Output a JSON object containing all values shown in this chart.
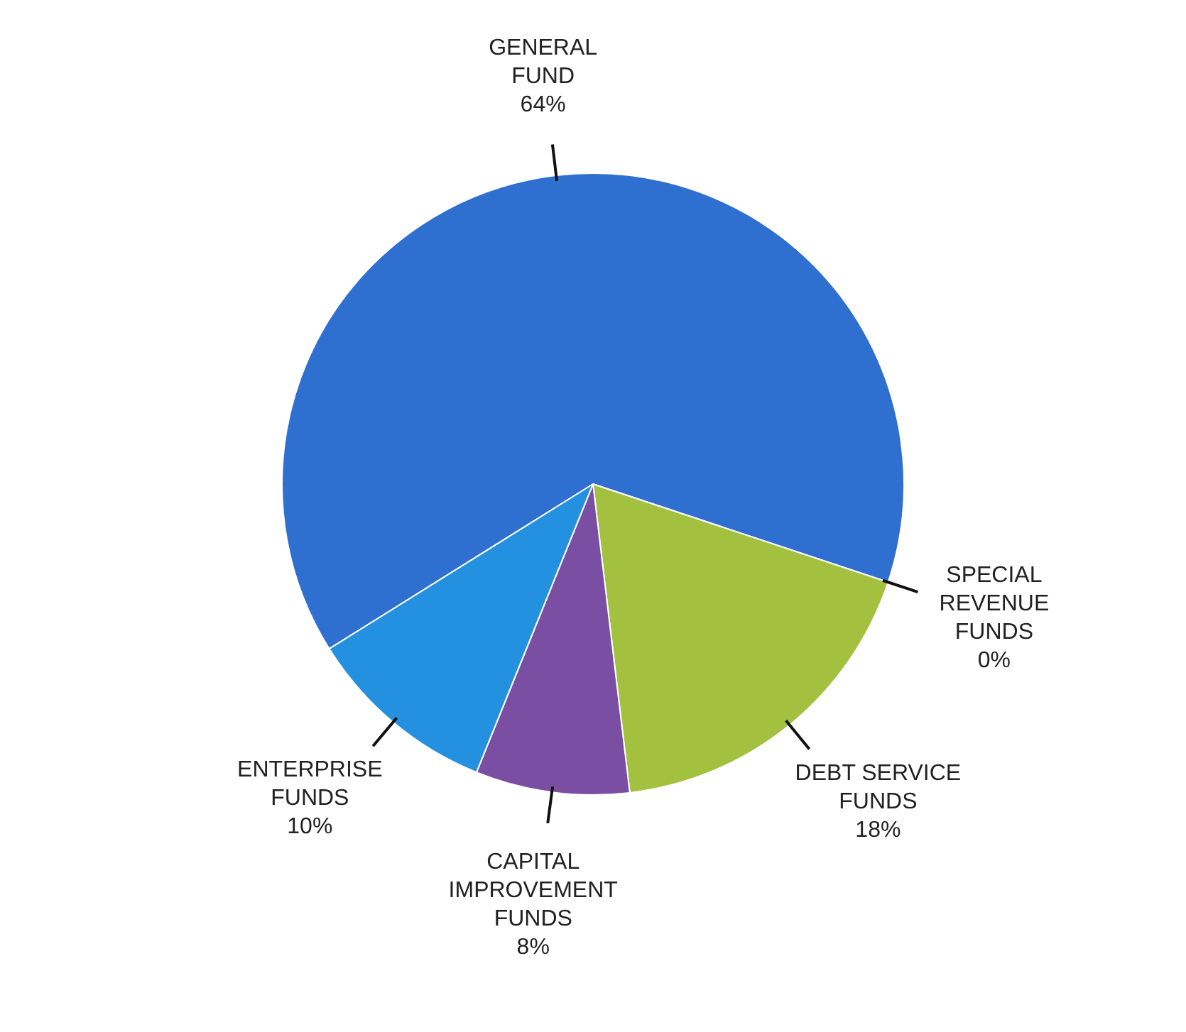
{
  "chart_data": {
    "type": "pie",
    "categories": [
      "GENERAL FUND",
      "SPECIAL REVENUE FUNDS",
      "DEBT SERVICE FUNDS",
      "CAPITAL IMPROVEMENT FUNDS",
      "ENTERPRISE FUNDS"
    ],
    "values": [
      64,
      0,
      18,
      8,
      10
    ],
    "value_labels": [
      "64%",
      "0%",
      "18%",
      "8%",
      "10%"
    ],
    "colors": [
      "#2f6fd0",
      "#c0504d",
      "#a3c13f",
      "#7a4fa3",
      "#2390e0"
    ]
  }
}
